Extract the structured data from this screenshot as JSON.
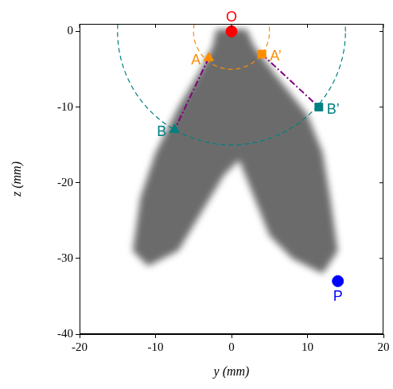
{
  "chart_data": {
    "type": "scatter",
    "xlabel": "y (mm)",
    "ylabel": "z (mm)",
    "xlim": [
      -20,
      20
    ],
    "xticks": [
      -20,
      -10,
      0,
      10,
      20
    ],
    "ylim": [
      -40,
      1
    ],
    "yticks": [
      -40,
      -30,
      -20,
      -10,
      0
    ],
    "grid": false,
    "points": [
      {
        "label": "O",
        "x": 0,
        "y": 0,
        "color": "#ff0000",
        "marker": "circle"
      },
      {
        "label": "A",
        "x": -3,
        "y": -3.5,
        "color": "#ff8c00",
        "marker": "triangle"
      },
      {
        "label": "A’",
        "x": 4,
        "y": -3,
        "color": "#ff8c00",
        "marker": "square"
      },
      {
        "label": "B",
        "x": -7.5,
        "y": -13,
        "color": "#008080",
        "marker": "triangle"
      },
      {
        "label": "B’",
        "x": 11.5,
        "y": -10,
        "color": "#008080",
        "marker": "square"
      },
      {
        "label": "P",
        "x": 14,
        "y": -33,
        "color": "#0000ff",
        "marker": "circle"
      }
    ],
    "arcs": [
      {
        "center": [
          0,
          0
        ],
        "radius": 5,
        "color": "#ff8c00",
        "line_style": "dashed"
      },
      {
        "center": [
          0,
          0
        ],
        "radius": 15,
        "color": "#008080",
        "line_style": "dashed"
      }
    ],
    "lines": [
      {
        "from": [
          -3,
          -3.5
        ],
        "to": [
          -7.5,
          -13
        ],
        "color": "#800080",
        "line_style": "dashdot"
      },
      {
        "from": [
          4,
          -3
        ],
        "to": [
          11.5,
          -10
        ],
        "color": "#800080",
        "line_style": "dashdot"
      }
    ],
    "shaded_region": {
      "color": "#3a3a3a",
      "x": [
        -2,
        2,
        3,
        6,
        10,
        12,
        13,
        14,
        12,
        8,
        5,
        3,
        1,
        -1,
        -4,
        -7,
        -11,
        -13,
        -12,
        -10,
        -7,
        -4,
        -2.5
      ],
      "y": [
        0.3,
        0.3,
        -2,
        -6,
        -11,
        -16,
        -22,
        -29,
        -32,
        -30,
        -27,
        -22,
        -17,
        -19,
        -24,
        -29,
        -31,
        -29,
        -22,
        -16,
        -10,
        -5,
        -2
      ]
    }
  }
}
